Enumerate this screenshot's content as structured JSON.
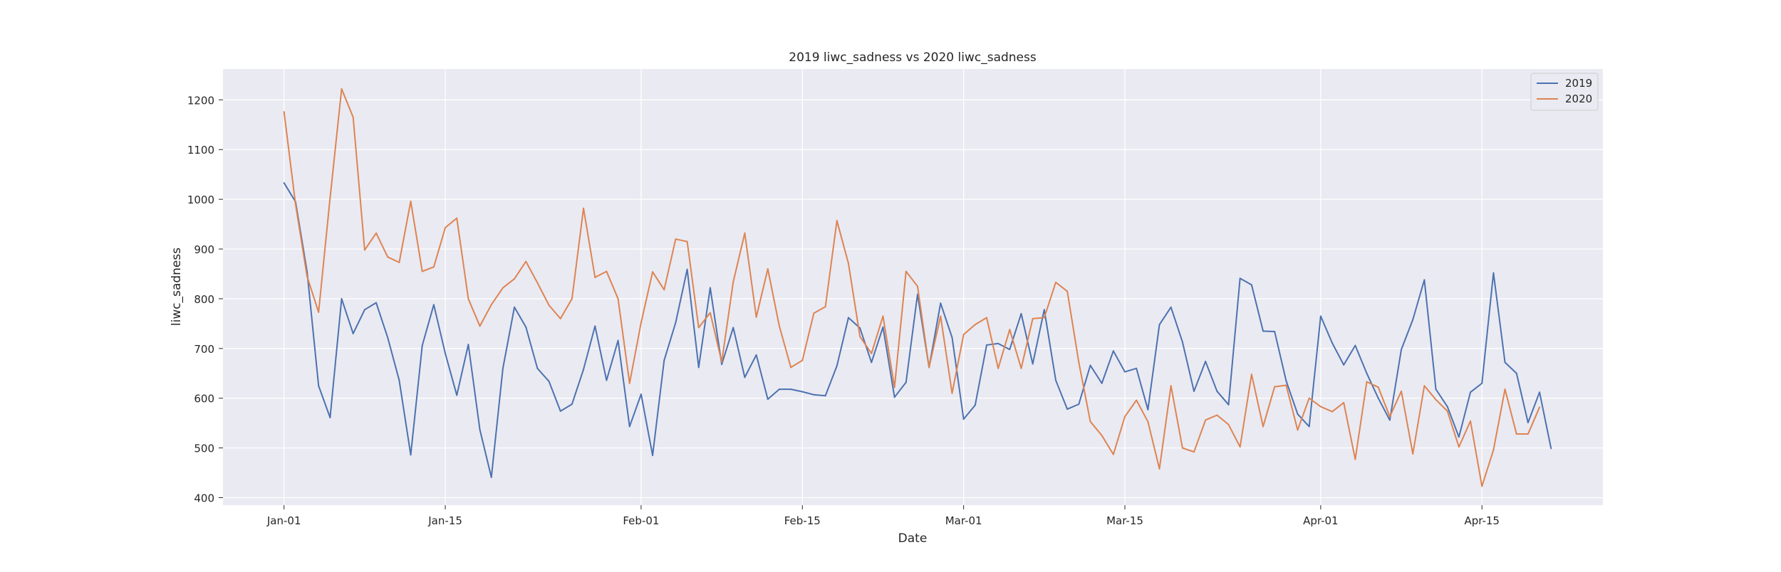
{
  "chart_data": {
    "type": "line",
    "title": "2019 liwc_sadness vs 2020 liwc_sadness",
    "xlabel": "Date",
    "ylabel": "liwc_sadness",
    "x_start": "Jan-01",
    "x_ticks": [
      "Jan-01",
      "Jan-15",
      "Feb-01",
      "Feb-15",
      "Mar-01",
      "Mar-15",
      "Apr-01",
      "Apr-15"
    ],
    "x_tick_days": [
      0,
      14,
      31,
      45,
      59,
      73,
      90,
      104
    ],
    "x_range_days": [
      -5.3,
      114.5
    ],
    "y_ticks": [
      400,
      500,
      600,
      700,
      800,
      900,
      1000,
      1100,
      1200
    ],
    "ylim": [
      385,
      1262
    ],
    "grid": true,
    "legend": "top-right",
    "series": [
      {
        "name": "2019",
        "color": "#4c72b0",
        "values": [
          1033,
          995,
          855,
          625,
          561,
          800,
          730,
          778,
          792,
          722,
          636,
          486,
          706,
          788,
          690,
          606,
          708,
          537,
          441,
          660,
          783,
          743,
          660,
          634,
          574,
          588,
          658,
          745,
          636,
          716,
          543,
          608,
          485,
          676,
          752,
          859,
          662,
          822,
          668,
          742,
          642,
          687,
          598,
          618,
          618,
          613,
          607,
          605,
          665,
          762,
          741,
          672,
          743,
          602,
          632,
          809,
          662,
          791,
          722,
          558,
          586,
          707,
          710,
          698,
          770,
          669,
          778,
          636,
          578,
          588,
          666,
          630,
          695,
          653,
          660,
          577,
          748,
          783,
          713,
          614,
          674,
          614,
          587,
          841,
          828,
          735,
          734,
          635,
          568,
          543,
          765,
          711,
          667,
          706,
          650,
          600,
          556,
          698,
          758,
          838,
          618,
          583,
          522,
          612,
          630,
          852,
          672,
          650,
          551,
          612,
          499
        ]
      },
      {
        "name": "2020",
        "color": "#dd8452",
        "values": [
          1176,
          990,
          845,
          773,
          1003,
          1222,
          1165,
          898,
          932,
          884,
          873,
          996,
          855,
          864,
          943,
          962,
          800,
          745,
          788,
          822,
          840,
          875,
          832,
          787,
          760,
          800,
          982,
          843,
          855,
          800,
          630,
          752,
          854,
          818,
          920,
          915,
          742,
          772,
          673,
          834,
          932,
          763,
          860,
          745,
          662,
          676,
          771,
          784,
          957,
          871,
          724,
          690,
          765,
          622,
          855,
          825,
          662,
          765,
          610,
          728,
          748,
          762,
          660,
          738,
          660,
          760,
          762,
          833,
          815,
          672,
          553,
          525,
          487,
          563,
          596,
          553,
          458,
          625,
          500,
          492,
          556,
          566,
          547,
          502,
          648,
          543,
          623,
          626,
          536,
          600,
          583,
          573,
          591,
          477,
          633,
          622,
          563,
          614,
          488,
          625,
          597,
          574,
          502,
          554,
          423,
          496,
          618,
          528,
          528,
          582
        ]
      }
    ]
  }
}
